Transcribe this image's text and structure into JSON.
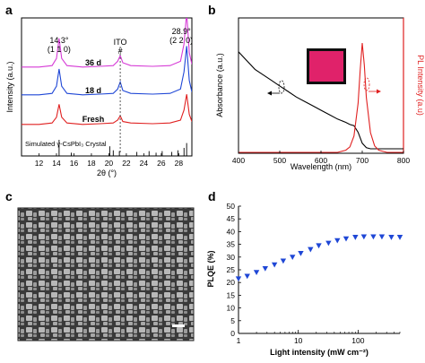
{
  "panels": {
    "a": {
      "letter": "a"
    },
    "b": {
      "letter": "b"
    },
    "c": {
      "letter": "c"
    },
    "d": {
      "letter": "d"
    }
  },
  "chart_data": [
    {
      "panel": "a",
      "type": "line",
      "xlabel": "2θ (°)",
      "ylabel": "Intensity (a.u.)",
      "xlim": [
        10,
        29.5
      ],
      "xticks": [
        12,
        14,
        16,
        18,
        20,
        22,
        24,
        26,
        28
      ],
      "series": [
        {
          "name": "36 d",
          "color": "#d63ad6",
          "x": [
            10,
            12,
            13.5,
            14.0,
            14.3,
            14.6,
            15.2,
            17,
            19,
            20.5,
            21.0,
            21.3,
            21.6,
            22.5,
            25,
            27,
            28.2,
            28.6,
            28.9,
            29.2,
            29.5
          ],
          "y": [
            0.2,
            0.2,
            0.3,
            0.8,
            2.2,
            0.8,
            0.3,
            0.2,
            0.25,
            0.3,
            0.6,
            1.0,
            0.5,
            0.3,
            0.25,
            0.3,
            0.6,
            1.8,
            4.0,
            1.2,
            0.4
          ]
        },
        {
          "name": "18 d",
          "color": "#1f47d6",
          "x": [
            10,
            12,
            13.5,
            14.0,
            14.3,
            14.6,
            15.2,
            17,
            19,
            20.5,
            21.0,
            21.3,
            21.6,
            22.5,
            25,
            27,
            28.2,
            28.6,
            28.9,
            29.2,
            29.5
          ],
          "y": [
            0.2,
            0.2,
            0.3,
            0.8,
            2.0,
            0.8,
            0.3,
            0.2,
            0.25,
            0.3,
            0.6,
            1.1,
            0.5,
            0.3,
            0.25,
            0.3,
            0.6,
            1.8,
            3.6,
            1.2,
            0.4
          ]
        },
        {
          "name": "Fresh",
          "color": "#e02020",
          "x": [
            10,
            12,
            13.5,
            14.0,
            14.3,
            14.6,
            15.2,
            17,
            19,
            20.5,
            21.0,
            21.3,
            21.6,
            22.5,
            25,
            27,
            28.2,
            28.6,
            28.9,
            29.2,
            29.5
          ],
          "y": [
            0.2,
            0.2,
            0.3,
            0.7,
            1.6,
            0.7,
            0.3,
            0.2,
            0.25,
            0.3,
            0.5,
            0.8,
            0.4,
            0.3,
            0.25,
            0.3,
            0.5,
            1.2,
            2.3,
            0.9,
            0.4
          ]
        }
      ],
      "reference": {
        "name": "Simulated γ-CsPbI₃ Crystal",
        "x": [
          14.3,
          15.7,
          20.1,
          20.5,
          21.2,
          23.2,
          24.6,
          25.4,
          26.1,
          27.2,
          27.9,
          28.6,
          28.9
        ],
        "y": [
          1.0,
          0.2,
          0.6,
          0.35,
          0.3,
          0.25,
          0.3,
          0.2,
          0.3,
          0.25,
          0.35,
          0.5,
          0.8
        ]
      },
      "annotations": [
        {
          "text": "14.3°",
          "sub": "(1 1 0)"
        },
        {
          "text": "28.9°",
          "sub": "(2 2 0)"
        },
        {
          "text": "ITO",
          "sub": "#"
        }
      ]
    },
    {
      "panel": "b",
      "type": "line",
      "xlabel": "Wavelength (nm)",
      "ylabel_left": "Absorbance (a.u.)",
      "ylabel_right": "PL Intensity (a.u)",
      "xlim": [
        400,
        800
      ],
      "xticks": [
        400,
        500,
        600,
        700,
        800
      ],
      "series": [
        {
          "name": "Absorbance",
          "color": "#000000",
          "x": [
            400,
            420,
            440,
            460,
            480,
            500,
            520,
            540,
            560,
            580,
            600,
            620,
            640,
            660,
            670,
            680,
            690,
            700,
            710,
            720,
            740,
            760,
            800
          ],
          "y": [
            0.88,
            0.8,
            0.72,
            0.67,
            0.62,
            0.57,
            0.52,
            0.47,
            0.43,
            0.39,
            0.35,
            0.31,
            0.27,
            0.24,
            0.22,
            0.21,
            0.15,
            0.05,
            0.01,
            0.0,
            0.0,
            0.0,
            0.0
          ]
        },
        {
          "name": "PL",
          "color": "#e02020",
          "x": [
            400,
            640,
            660,
            670,
            680,
            690,
            695,
            700,
            705,
            710,
            720,
            730,
            740,
            760,
            800
          ],
          "y": [
            0,
            0,
            0.02,
            0.05,
            0.15,
            0.45,
            0.75,
            1.0,
            0.8,
            0.5,
            0.18,
            0.06,
            0.02,
            0,
            0
          ]
        }
      ]
    },
    {
      "panel": "d",
      "type": "scatter",
      "xlabel": "Light intensity (mW cm⁻²)",
      "ylabel": "PLQE (%)",
      "xscale": "log",
      "xlim": [
        1,
        500
      ],
      "ylim": [
        0,
        50
      ],
      "xticks": [
        1,
        10,
        100
      ],
      "yticks": [
        0,
        5,
        10,
        15,
        20,
        25,
        30,
        35,
        40,
        45,
        50
      ],
      "series": [
        {
          "name": "PLQE",
          "color": "#1f47d6",
          "x": [
            1,
            1.4,
            2,
            2.8,
            4,
            5.6,
            8,
            11,
            16,
            22,
            32,
            45,
            63,
            90,
            125,
            180,
            250,
            360,
            500
          ],
          "y": [
            21.5,
            22.5,
            24,
            25.5,
            27,
            28.5,
            30,
            31.5,
            33,
            34.5,
            35.5,
            36.5,
            37.2,
            37.8,
            38,
            38,
            38,
            37.8,
            37.8
          ]
        }
      ]
    }
  ]
}
